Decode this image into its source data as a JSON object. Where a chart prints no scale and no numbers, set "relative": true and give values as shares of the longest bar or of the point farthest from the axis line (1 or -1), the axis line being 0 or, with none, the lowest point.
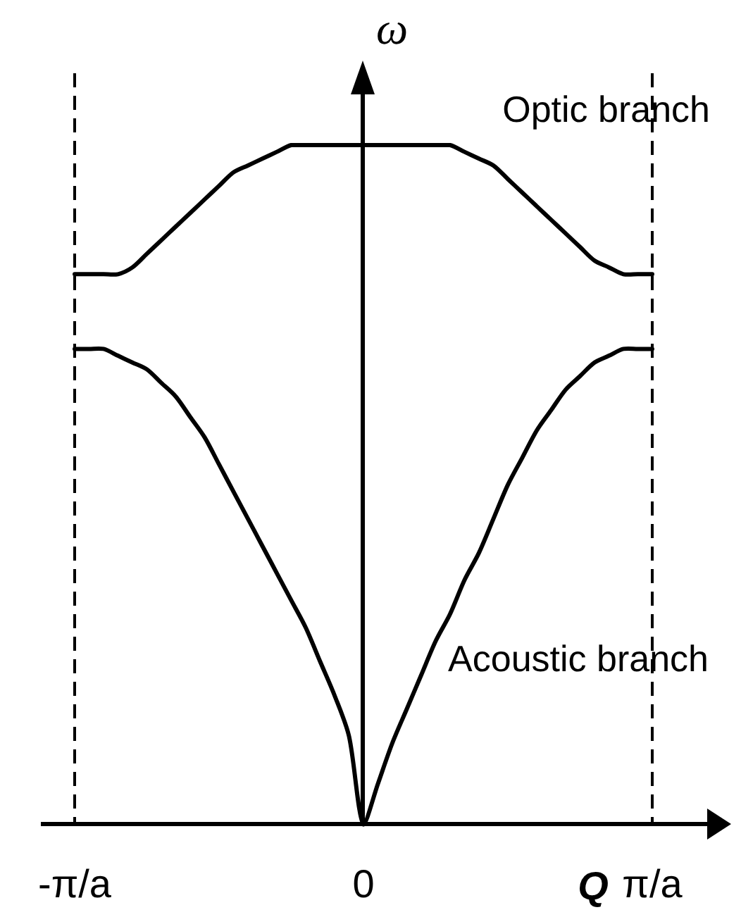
{
  "chart_data": {
    "type": "line",
    "xlabel": "Q",
    "ylabel": "ω",
    "relative": true,
    "tick_labels": "x",
    "marker": "none",
    "line_style": "solid",
    "categories": [
      "-π/a",
      null,
      null,
      null,
      null,
      null,
      null,
      null,
      null,
      null,
      null,
      null,
      null,
      null,
      null,
      null,
      null,
      null,
      null,
      null,
      "0",
      null,
      null,
      null,
      null,
      null,
      null,
      null,
      null,
      null,
      null,
      null,
      null,
      null,
      null,
      null,
      null,
      null,
      null,
      null,
      "π/a"
    ],
    "ref_lines": [
      {
        "axis": "x",
        "value": "-π/a",
        "color": "#000000",
        "line_style": "dashed"
      },
      {
        "axis": "x",
        "value": "π/a",
        "color": "#000000",
        "line_style": "dashed"
      }
    ],
    "series": [
      {
        "name": "Optic branch",
        "color": "#000000",
        "values": [
          0.81,
          0.81,
          0.81,
          0.81,
          0.82,
          0.84,
          0.86,
          0.88,
          0.9,
          0.92,
          0.94,
          0.96,
          0.97,
          0.98,
          0.99,
          1,
          1,
          1,
          1,
          1,
          1,
          1,
          1,
          1,
          1,
          1,
          1,
          0.99,
          0.98,
          0.97,
          0.95,
          0.93,
          0.91,
          0.89,
          0.87,
          0.85,
          0.83,
          0.82,
          0.81,
          0.81,
          0.81
        ]
      },
      {
        "name": "Acoustic branch",
        "color": "#000000",
        "values": [
          0.7,
          0.7,
          0.7,
          0.69,
          0.68,
          0.67,
          0.65,
          0.63,
          0.6,
          0.57,
          0.53,
          0.49,
          0.45,
          0.41,
          0.37,
          0.33,
          0.29,
          0.24,
          0.19,
          0.13,
          0,
          0.06,
          0.12,
          0.17,
          0.22,
          0.27,
          0.31,
          0.36,
          0.4,
          0.45,
          0.5,
          0.54,
          0.58,
          0.61,
          0.64,
          0.66,
          0.68,
          0.69,
          0.7,
          0.7,
          0.7
        ]
      }
    ]
  }
}
